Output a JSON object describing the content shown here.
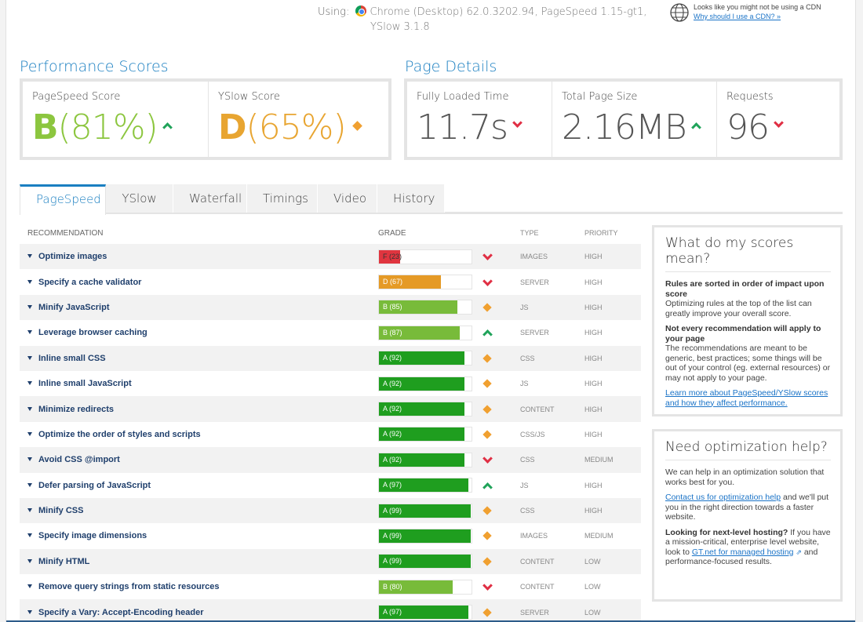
{
  "header": {
    "using_label": "Using:",
    "browser_text": "Chrome (Desktop) 62.0.3202.94, PageSpeed 1.15-gt1,",
    "yslow_version": "YSlow 3.1.8"
  },
  "cdn_notice": {
    "text": "Looks like you might not be using a CDN",
    "link": "Why should I use a CDN? »"
  },
  "performance": {
    "title": "Performance Scores",
    "pagespeed_label": "PageSpeed Score",
    "pagespeed_grade": "B",
    "pagespeed_pct": "(81%)",
    "yslow_label": "YSlow Score",
    "yslow_grade": "D",
    "yslow_pct": "(65%)"
  },
  "details": {
    "title": "Page Details",
    "load_label": "Fully Loaded Time",
    "load_value": "11.7s",
    "size_label": "Total Page Size",
    "size_value": "2.16MB",
    "req_label": "Requests",
    "req_value": "96"
  },
  "tabs": [
    "PageSpeed",
    "YSlow",
    "Waterfall",
    "Timings",
    "Video",
    "History"
  ],
  "table_headers": {
    "recommendation": "RECOMMENDATION",
    "grade": "GRADE",
    "type": "TYPE",
    "priority": "PRIORITY"
  },
  "recommendations": [
    {
      "name": "Optimize images",
      "grade": "F (23)",
      "score": 23,
      "color": "#e0353f",
      "trend": "down",
      "type": "IMAGES",
      "priority": "HIGH"
    },
    {
      "name": "Specify a cache validator",
      "grade": "D (67)",
      "score": 67,
      "color": "#e59a26",
      "trend": "down",
      "type": "SERVER",
      "priority": "HIGH"
    },
    {
      "name": "Minify JavaScript",
      "grade": "B (85)",
      "score": 85,
      "color": "#78bb3a",
      "trend": "neutral",
      "type": "JS",
      "priority": "HIGH"
    },
    {
      "name": "Leverage browser caching",
      "grade": "B (87)",
      "score": 87,
      "color": "#78bb3a",
      "trend": "up",
      "type": "SERVER",
      "priority": "HIGH"
    },
    {
      "name": "Inline small CSS",
      "grade": "A (92)",
      "score": 92,
      "color": "#1f9e1f",
      "trend": "neutral",
      "type": "CSS",
      "priority": "HIGH"
    },
    {
      "name": "Inline small JavaScript",
      "grade": "A (92)",
      "score": 92,
      "color": "#1f9e1f",
      "trend": "neutral",
      "type": "JS",
      "priority": "HIGH"
    },
    {
      "name": "Minimize redirects",
      "grade": "A (92)",
      "score": 92,
      "color": "#1f9e1f",
      "trend": "neutral",
      "type": "CONTENT",
      "priority": "HIGH"
    },
    {
      "name": "Optimize the order of styles and scripts",
      "grade": "A (92)",
      "score": 92,
      "color": "#1f9e1f",
      "trend": "neutral",
      "type": "CSS/JS",
      "priority": "HIGH"
    },
    {
      "name": "Avoid CSS @import",
      "grade": "A (92)",
      "score": 92,
      "color": "#1f9e1f",
      "trend": "down",
      "type": "CSS",
      "priority": "MEDIUM"
    },
    {
      "name": "Defer parsing of JavaScript",
      "grade": "A (97)",
      "score": 97,
      "color": "#1f9e1f",
      "trend": "up",
      "type": "JS",
      "priority": "HIGH"
    },
    {
      "name": "Minify CSS",
      "grade": "A (99)",
      "score": 99,
      "color": "#1f9e1f",
      "trend": "neutral",
      "type": "CSS",
      "priority": "HIGH"
    },
    {
      "name": "Specify image dimensions",
      "grade": "A (99)",
      "score": 99,
      "color": "#1f9e1f",
      "trend": "neutral",
      "type": "IMAGES",
      "priority": "MEDIUM"
    },
    {
      "name": "Minify HTML",
      "grade": "A (99)",
      "score": 99,
      "color": "#1f9e1f",
      "trend": "neutral",
      "type": "CONTENT",
      "priority": "LOW"
    },
    {
      "name": "Remove query strings from static resources",
      "grade": "B (80)",
      "score": 80,
      "color": "#78bb3a",
      "trend": "down",
      "type": "CONTENT",
      "priority": "LOW"
    },
    {
      "name": "Specify a Vary: Accept-Encoding header",
      "grade": "A (97)",
      "score": 97,
      "color": "#1f9e1f",
      "trend": "neutral",
      "type": "SERVER",
      "priority": "LOW"
    }
  ],
  "scores_panel": {
    "title": "What do my scores mean?",
    "h1": "Rules are sorted in order of impact upon score",
    "p1": "Optimizing rules at the top of the list can greatly improve your overall score.",
    "h2": "Not every recommendation will apply to your page",
    "p2": "The recommendations are meant to be generic, best practices; some things will be out of your control (eg. external resources) or may not apply to your page.",
    "link": "Learn more about PageSpeed/YSlow scores and how they affect performance."
  },
  "help_panel": {
    "title": "Need optimization help?",
    "p1": "We can help in an optimization solution that works best for you.",
    "link1": "Contact us for optimization help",
    "p2": " and we'll put you in the right direction towards a faster website.",
    "h3": "Looking for next-level hosting?",
    "p3": " If you have a mission-critical, enterprise level website, look to ",
    "link2": "GT.net for managed hosting",
    "p4": " and performance-focused results."
  }
}
